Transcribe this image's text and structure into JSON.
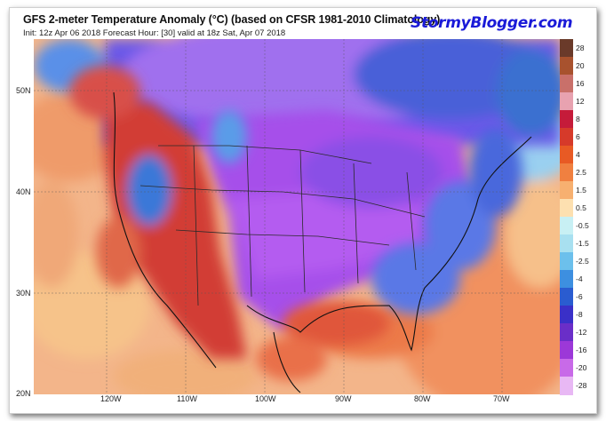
{
  "header": {
    "title": "GFS 2-meter Temperature Anomaly (°C) (based on CFSR 1981-2010 Climatology)",
    "subtitle": "Init: 12z Apr 06 2018    Forecast Hour: [30]    valid at 18z Sat, Apr 07 2018",
    "brand": "StormyBlogger.com"
  },
  "axes": {
    "lat_labels": [
      "50N",
      "40N",
      "30N",
      "20N"
    ],
    "lon_labels": [
      "120W",
      "110W",
      "100W",
      "90W",
      "80W",
      "70W"
    ]
  },
  "colorbar": {
    "labels": [
      "28",
      "20",
      "16",
      "12",
      "8",
      "6",
      "4",
      "2.5",
      "1.5",
      "0.5",
      "-0.5",
      "-1.5",
      "-2.5",
      "-4",
      "-6",
      "-8",
      "-12",
      "-16",
      "-20",
      "-28"
    ],
    "colors": [
      "#6a3a2a",
      "#a8522e",
      "#c9706a",
      "#e8a2b0",
      "#c51b3a",
      "#d63a2a",
      "#e85a24",
      "#f08040",
      "#f7b070",
      "#fde0b0",
      "#c8f0f4",
      "#a8e0f0",
      "#6cc0ec",
      "#3d8fe0",
      "#2a5cd0",
      "#3a30c8",
      "#6a2ec8",
      "#9c38d8",
      "#c86ae8",
      "#e8b8f4"
    ]
  },
  "map_regions": {
    "water": "#f3b27a",
    "warm_west": "#cf3a35",
    "cold_core": "#a54fea",
    "cold_edge": "#4d6fe0"
  }
}
